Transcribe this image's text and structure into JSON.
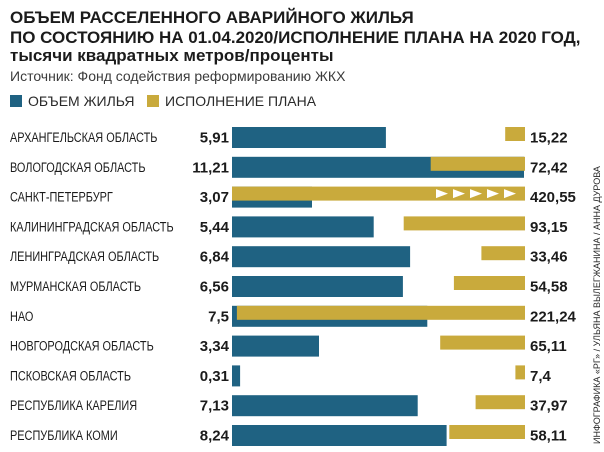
{
  "chart_data": {
    "type": "bar",
    "orientation": "horizontal",
    "title": [
      "ОБЪЕМ РАССЕЛЕННОГО АВАРИЙНОГО ЖИЛЬЯ",
      "ПО СОСТОЯНИЮ НА 01.04.2020/ИСПОЛНЕНИЕ ПЛАНА НА 2020 ГОД,"
    ],
    "subtitle": "тысячи квадратных метров/проценты",
    "source": "Источник: Фонд содействия реформированию ЖКХ",
    "categories": [
      "АРХАНГЕЛЬСКАЯ ОБЛАСТЬ",
      "ВОЛОГОДСКАЯ ОБЛАСТЬ",
      "САНКТ-ПЕТЕРБУРГ",
      "КАЛИНИНГРАДСКАЯ ОБЛАСТЬ",
      "ЛЕНИНГРАДСКАЯ ОБЛАСТЬ",
      "МУРМАНСКАЯ ОБЛАСТЬ",
      "НАО",
      "НОВГОРОДСКАЯ ОБЛАСТЬ",
      "ПСКОВСКАЯ ОБЛАСТЬ",
      "РЕСПУБЛИКА КАРЕЛИЯ",
      "РЕСПУБЛИКА КОМИ"
    ],
    "series": [
      {
        "name": "ОБЪЕМ ЖИЛЬЯ",
        "color": "#1f6282",
        "range": [
          0,
          11.25
        ],
        "direction": "left-to-right",
        "values": [
          5.91,
          11.21,
          3.07,
          5.44,
          6.84,
          6.56,
          7.5,
          3.34,
          0.31,
          7.13,
          8.24
        ],
        "value_labels": [
          "5,91",
          "11,21",
          "3,07",
          "5,44",
          "6,84",
          "6,56",
          "7,5",
          "3,34",
          "0,31",
          "7,13",
          "8,24"
        ]
      },
      {
        "name": "ИСПОЛНЕНИЕ ПЛАНА",
        "color": "#c9aa3c",
        "range": [
          0,
          225
        ],
        "direction": "right-to-left",
        "values": [
          15.22,
          72.42,
          420.55,
          93.15,
          33.46,
          54.58,
          221.24,
          65.11,
          7.4,
          37.97,
          58.11
        ],
        "value_labels": [
          "15,22",
          "72,42",
          "420,55",
          "93,15",
          "33,46",
          "54,58",
          "221,24",
          "65,11",
          "7,4",
          "37,97",
          "58,11"
        ]
      }
    ],
    "legend": "top-left",
    "grid": false
  },
  "credit": "ИНФОГРАФИКА «РГ» / УЛЬЯНА ВЫЛЕГЖАНИНА / АННА ДУРОВА",
  "colors": {
    "text": "#1b1b1b",
    "overflow_marker": "#ffffff"
  }
}
